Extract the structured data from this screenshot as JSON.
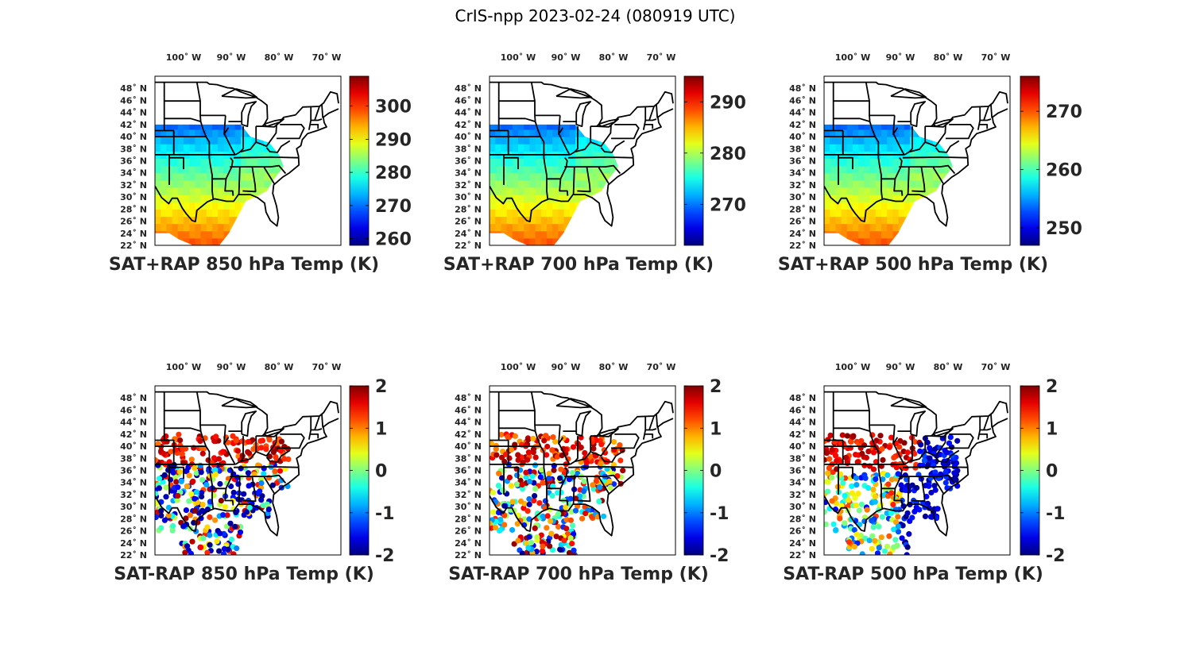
{
  "title": "CrIS-npp 2023-02-24 (080919 UTC)",
  "lon_tick_labels": [
    "100˚ W",
    "90˚ W",
    "80˚ W",
    "70˚ W"
  ],
  "lat_tick_labels": [
    "48˚ N",
    "46˚ N",
    "44˚ N",
    "42˚ N",
    "40˚ N",
    "38˚ N",
    "36˚ N",
    "34˚ N",
    "32˚ N",
    "30˚ N",
    "28˚ N",
    "26˚ N",
    "24˚ N",
    "22˚ N"
  ],
  "colormap": "jet",
  "chart_data": [
    {
      "type": "heatmap",
      "title": "SAT+RAP 850 hPa Temp (K)",
      "field": "temperature",
      "lon_range": [
        -106,
        -67
      ],
      "lat_range": [
        22,
        50
      ],
      "colorbar_range": [
        258,
        309
      ],
      "colorbar_ticks": [
        260,
        270,
        280,
        290,
        300
      ],
      "colorbar_tick_labels": [
        "260",
        "270",
        "280",
        "290",
        "300"
      ]
    },
    {
      "type": "heatmap",
      "title": "SAT+RAP 700 hPa Temp (K)",
      "field": "temperature",
      "lon_range": [
        -106,
        -67
      ],
      "lat_range": [
        22,
        50
      ],
      "colorbar_range": [
        262,
        295
      ],
      "colorbar_ticks": [
        270,
        280,
        290
      ],
      "colorbar_tick_labels": [
        "270",
        "280",
        "290"
      ]
    },
    {
      "type": "heatmap",
      "title": "SAT+RAP 500 hPa Temp (K)",
      "field": "temperature",
      "lon_range": [
        -106,
        -67
      ],
      "lat_range": [
        22,
        50
      ],
      "colorbar_range": [
        247,
        276
      ],
      "colorbar_ticks": [
        250,
        260,
        270
      ],
      "colorbar_tick_labels": [
        "250",
        "260",
        "270"
      ]
    },
    {
      "type": "scatter",
      "title": "SAT-RAP 850 hPa Temp (K)",
      "field": "difference",
      "lon_range": [
        -106,
        -67
      ],
      "lat_range": [
        22,
        50
      ],
      "colorbar_range": [
        -2,
        2
      ],
      "colorbar_ticks": [
        -2,
        -1,
        0,
        1,
        2
      ],
      "colorbar_tick_labels": [
        "-2",
        "-1",
        "0",
        "1",
        "2"
      ]
    },
    {
      "type": "scatter",
      "title": "SAT-RAP 700 hPa Temp (K)",
      "field": "difference",
      "lon_range": [
        -106,
        -67
      ],
      "lat_range": [
        22,
        50
      ],
      "colorbar_range": [
        -2,
        2
      ],
      "colorbar_ticks": [
        -2,
        -1,
        0,
        1,
        2
      ],
      "colorbar_tick_labels": [
        "-2",
        "-1",
        "0",
        "1",
        "2"
      ]
    },
    {
      "type": "scatter",
      "title": "SAT-RAP 500 hPa Temp (K)",
      "field": "difference",
      "lon_range": [
        -106,
        -67
      ],
      "lat_range": [
        22,
        50
      ],
      "colorbar_range": [
        -2,
        2
      ],
      "colorbar_ticks": [
        -2,
        -1,
        0,
        1,
        2
      ],
      "colorbar_tick_labels": [
        "-2",
        "-1",
        "0",
        "1",
        "2"
      ]
    }
  ]
}
